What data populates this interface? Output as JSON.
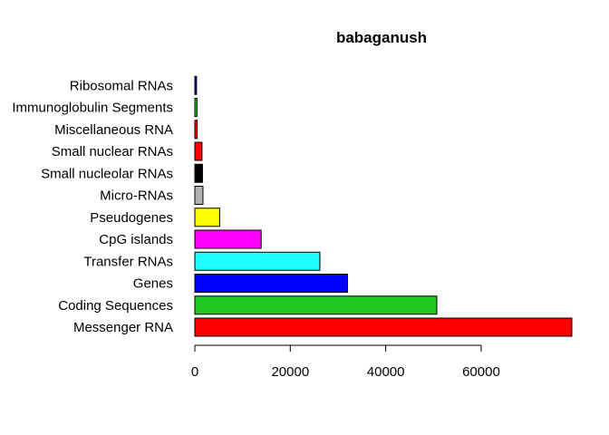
{
  "chart_data": {
    "type": "bar",
    "orientation": "horizontal",
    "title": "babaganush",
    "xlabel": "",
    "ylabel": "",
    "xlim": [
      0,
      79000
    ],
    "xticks": [
      0,
      20000,
      40000,
      60000
    ],
    "xtick_labels": [
      "0",
      "20000",
      "40000",
      "60000"
    ],
    "categories": [
      "Messenger RNA",
      "Coding Sequences",
      "Genes",
      "Transfer RNAs",
      "CpG islands",
      "Pseudogenes",
      "Micro-RNAs",
      "Small nucleolar RNAs",
      "Small nuclear RNAs",
      "Miscellaneous RNA",
      "Immunoglobulin Segments",
      "Ribosomal RNAs"
    ],
    "values": [
      79000,
      50700,
      32000,
      26200,
      13900,
      5200,
      1700,
      1600,
      1500,
      500,
      450,
      350
    ],
    "colors": [
      "#ff0000",
      "#1ec81e",
      "#0000ff",
      "#1effff",
      "#ff00ff",
      "#ffff00",
      "#b3b3b3",
      "#000000",
      "#ff0000",
      "#ff0000",
      "#1ec81e",
      "#0000ff"
    ],
    "grid": false,
    "legend": "none"
  }
}
